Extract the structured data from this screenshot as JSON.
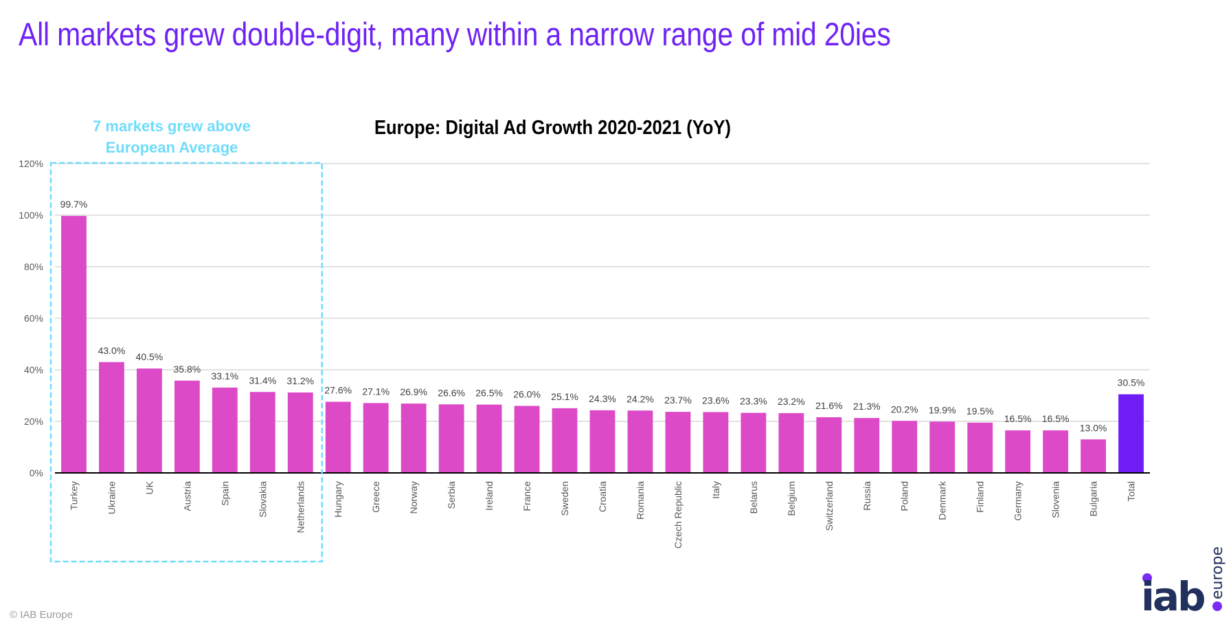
{
  "slide": {
    "title": "All markets grew double-digit, many within a narrow range of mid 20ies",
    "footer": "© IAB Europe",
    "logo": {
      "main": "iab",
      "sub": "europe",
      "name": "iab-europe-logo"
    }
  },
  "annotation": {
    "lines": [
      "7 markets grew above",
      "European Average"
    ],
    "highlighted_count": 7,
    "color": "#6fdcfb"
  },
  "colors": {
    "title": "#6f22f5",
    "bar": "#dd4ac8",
    "total_bar": "#701cf5",
    "grid": "#d9d9d9",
    "axis": "#000000",
    "label": "#404040",
    "logo_text": "#22305e",
    "logo_dot": "#7a2cf5"
  },
  "chart_data": {
    "type": "bar",
    "title": "Europe: Digital Ad Growth 2020-2021 (YoY)",
    "xlabel": "",
    "ylabel": "",
    "ylim": [
      0,
      120
    ],
    "yticks": [
      0,
      20,
      40,
      60,
      80,
      100,
      120
    ],
    "ytick_labels": [
      "0%",
      "20%",
      "40%",
      "60%",
      "80%",
      "100%",
      "120%"
    ],
    "grid": true,
    "legend": "none",
    "categories": [
      "Turkey",
      "Ukraine",
      "UK",
      "Austria",
      "Spain",
      "Slovakia",
      "Netherlands",
      "Hungary",
      "Greece",
      "Norway",
      "Serbia",
      "Ireland",
      "France",
      "Sweden",
      "Croatia",
      "Romania",
      "Czech Republic",
      "Italy",
      "Belarus",
      "Belgium",
      "Switzerland",
      "Russia",
      "Poland",
      "Denmark",
      "Finland",
      "Germany",
      "Slovenia",
      "Bulgaria",
      "Total"
    ],
    "values": [
      99.7,
      43.0,
      40.5,
      35.8,
      33.1,
      31.4,
      31.2,
      27.6,
      27.1,
      26.9,
      26.6,
      26.5,
      26.0,
      25.1,
      24.3,
      24.2,
      23.7,
      23.6,
      23.3,
      23.2,
      21.6,
      21.3,
      20.2,
      19.9,
      19.5,
      16.5,
      16.5,
      13.0,
      30.5
    ],
    "data_labels": [
      "99.7%",
      "43.0%",
      "40.5%",
      "35.8%",
      "33.1%",
      "31.4%",
      "31.2%",
      "27.6%",
      "27.1%",
      "26.9%",
      "26.6%",
      "26.5%",
      "26.0%",
      "25.1%",
      "24.3%",
      "24.2%",
      "23.7%",
      "23.6%",
      "23.3%",
      "23.2%",
      "21.6%",
      "21.3%",
      "20.2%",
      "19.9%",
      "19.5%",
      "16.5%",
      "16.5%",
      "13.0%",
      "30.5%"
    ],
    "highlight_category": "Total",
    "annotation_box_categories": [
      "Turkey",
      "Ukraine",
      "UK",
      "Austria",
      "Spain",
      "Slovakia",
      "Netherlands"
    ]
  }
}
